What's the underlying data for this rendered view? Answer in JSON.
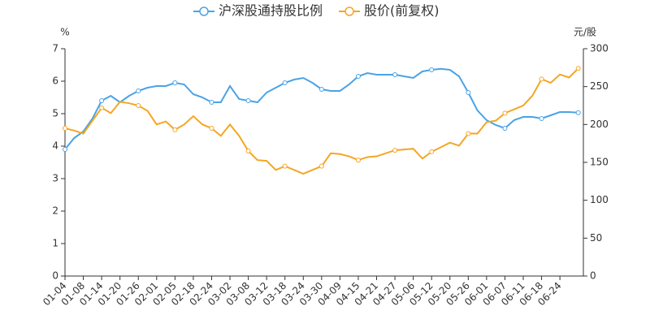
{
  "chart_data": {
    "type": "line",
    "y_label": "%",
    "y2_label": "元/股",
    "categories": [
      "01-04",
      null,
      "01-08",
      null,
      "01-14",
      null,
      "01-20",
      null,
      "01-26",
      null,
      "02-01",
      null,
      "02-05",
      null,
      "02-18",
      null,
      "02-24",
      null,
      "03-02",
      null,
      "03-08",
      null,
      "03-12",
      null,
      "03-18",
      null,
      "03-24",
      null,
      "03-30",
      null,
      "04-09",
      null,
      "04-15",
      null,
      "04-21",
      null,
      "04-27",
      null,
      "05-06",
      null,
      "05-12",
      null,
      "05-20",
      null,
      "05-26",
      null,
      "06-01",
      null,
      "06-07",
      null,
      "06-11",
      null,
      "06-18",
      null,
      "06-24",
      null,
      null
    ],
    "series": [
      {
        "name": "沪深股通持股比例",
        "color": "#4aa3e6",
        "axis": "y",
        "values": [
          3.9,
          4.25,
          4.45,
          4.85,
          5.4,
          5.55,
          5.35,
          5.55,
          5.7,
          5.8,
          5.85,
          5.85,
          5.95,
          5.9,
          5.6,
          5.5,
          5.35,
          5.35,
          5.85,
          5.45,
          5.4,
          5.35,
          5.65,
          5.8,
          5.95,
          6.05,
          6.1,
          5.95,
          5.75,
          5.7,
          5.7,
          5.9,
          6.15,
          6.25,
          6.2,
          6.2,
          6.2,
          6.15,
          6.1,
          6.3,
          6.35,
          6.38,
          6.35,
          6.15,
          5.65,
          5.1,
          4.8,
          4.65,
          4.55,
          4.8,
          4.9,
          4.9,
          4.85,
          4.95,
          5.05,
          5.05,
          5.03
        ]
      },
      {
        "name": "股价(前复权)",
        "color": "#f5a623",
        "axis": "y2",
        "values": [
          195,
          192,
          188,
          205,
          222,
          215,
          230,
          228,
          225,
          218,
          200,
          204,
          193,
          200,
          211,
          200,
          195,
          185,
          200,
          185,
          165,
          153,
          152,
          140,
          145,
          140,
          135,
          140,
          145,
          162,
          161,
          158,
          153,
          157,
          158,
          162,
          166,
          167,
          168,
          155,
          164,
          170,
          176,
          172,
          188,
          188,
          203,
          205,
          215,
          220,
          225,
          238,
          260,
          255,
          266,
          262,
          274
        ]
      }
    ],
    "ylim": [
      0,
      7
    ],
    "yticks": [
      0,
      1,
      2,
      3,
      4,
      5,
      6,
      7
    ],
    "y2lim": [
      0,
      300
    ],
    "y2ticks": [
      0,
      50,
      100,
      150,
      200,
      250,
      300
    ],
    "legend": "top"
  }
}
